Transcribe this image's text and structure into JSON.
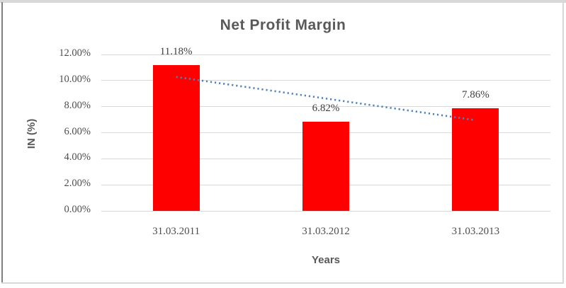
{
  "frame": {
    "top_edge_color": "#d8d8d8",
    "left_edge_color": "#7f7f7f",
    "right_edge_color": "#d8d8d8",
    "bottom_edge_color": "#d8d8d8",
    "background_color": "#ffffff"
  },
  "chart_data": {
    "type": "bar",
    "title": "Net Profit Margin",
    "xlabel": "Years",
    "ylabel": "IN (%)",
    "categories": [
      "31.03.2011",
      "31.03.2012",
      "31.03.2013"
    ],
    "values": [
      11.18,
      6.82,
      7.86
    ],
    "data_labels": [
      "11.18%",
      "6.82%",
      "7.86%"
    ],
    "ylim": [
      0,
      12
    ],
    "ytick_step": 2,
    "ytick_labels": [
      "0.00%",
      "2.00%",
      "4.00%",
      "6.00%",
      "8.00%",
      "10.00%",
      "12.00%"
    ],
    "grid": "horizontal",
    "legend": "none",
    "trendline": {
      "type": "linear",
      "style": "dotted",
      "start_value": 10.28,
      "end_value": 6.96,
      "color": "#4f81bd"
    },
    "colors": {
      "bar": "#ff0000",
      "gridline": "#d9d9d9",
      "title_text": "#595959",
      "axis_title_text": "#595959",
      "tick_label_text": "#4d4d4d",
      "data_label_text": "#404040"
    }
  }
}
